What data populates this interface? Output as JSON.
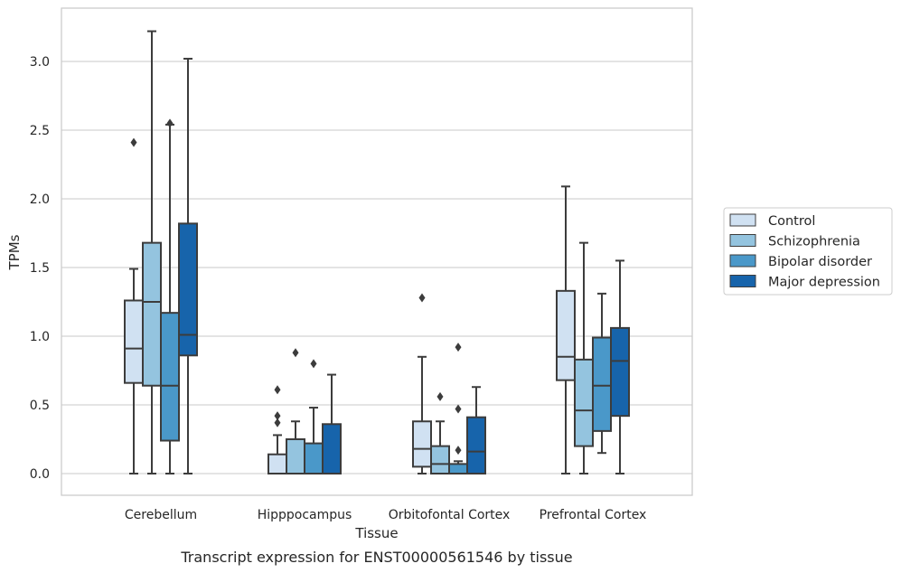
{
  "caption": "Transcript expression for ENST00000561546 by tissue",
  "chart_data": {
    "type": "box",
    "xlabel": "Tissue",
    "ylabel": "TPMs",
    "ylim": [
      -0.15,
      3.4
    ],
    "yticks": [
      0.0,
      0.5,
      1.0,
      1.5,
      2.0,
      2.5,
      3.0
    ],
    "ytick_labels": [
      "0.0",
      "0.5",
      "1.0",
      "1.5",
      "2.0",
      "2.5",
      "3.0"
    ],
    "grid": "horizontal",
    "legend_position": "right",
    "categories": [
      "Cerebellum",
      "Hipppocampus",
      "Orbitofontal Cortex",
      "Prefrontal Cortex"
    ],
    "series": [
      {
        "name": "Control",
        "color": "#d0e1f2",
        "boxes": [
          {
            "whislo": 0.0,
            "q1": 0.66,
            "med": 0.91,
            "q3": 1.26,
            "whishi": 1.49,
            "fliers": [
              2.41
            ]
          },
          {
            "whislo": 0.0,
            "q1": 0.0,
            "med": 0.0,
            "q3": 0.14,
            "whishi": 0.28,
            "fliers": [
              0.37,
              0.42,
              0.61
            ]
          },
          {
            "whislo": 0.0,
            "q1": 0.05,
            "med": 0.18,
            "q3": 0.38,
            "whishi": 0.85,
            "fliers": [
              1.28
            ]
          },
          {
            "whislo": 0.0,
            "q1": 0.68,
            "med": 0.85,
            "q3": 1.33,
            "whishi": 2.09,
            "fliers": []
          }
        ]
      },
      {
        "name": "Schizophrenia",
        "color": "#94c4df",
        "boxes": [
          {
            "whislo": 0.0,
            "q1": 0.64,
            "med": 1.25,
            "q3": 1.68,
            "whishi": 3.22,
            "fliers": []
          },
          {
            "whislo": 0.0,
            "q1": 0.0,
            "med": 0.0,
            "q3": 0.25,
            "whishi": 0.38,
            "fliers": [
              0.88
            ]
          },
          {
            "whislo": 0.0,
            "q1": 0.0,
            "med": 0.07,
            "q3": 0.2,
            "whishi": 0.38,
            "fliers": [
              0.56
            ]
          },
          {
            "whislo": 0.0,
            "q1": 0.2,
            "med": 0.46,
            "q3": 0.83,
            "whishi": 1.68,
            "fliers": []
          }
        ]
      },
      {
        "name": "Bipolar disorder",
        "color": "#4a98c9",
        "boxes": [
          {
            "whislo": 0.0,
            "q1": 0.24,
            "med": 0.64,
            "q3": 1.17,
            "whishi": 2.54,
            "fliers": [
              2.55
            ]
          },
          {
            "whislo": 0.0,
            "q1": 0.0,
            "med": 0.0,
            "q3": 0.22,
            "whishi": 0.48,
            "fliers": [
              0.8
            ]
          },
          {
            "whislo": 0.0,
            "q1": 0.0,
            "med": 0.0,
            "q3": 0.07,
            "whishi": 0.09,
            "fliers": [
              0.17,
              0.47,
              0.92
            ]
          },
          {
            "whislo": 0.15,
            "q1": 0.31,
            "med": 0.64,
            "q3": 0.99,
            "whishi": 1.31,
            "fliers": []
          }
        ]
      },
      {
        "name": "Major depression",
        "color": "#1764ab",
        "boxes": [
          {
            "whislo": 0.0,
            "q1": 0.86,
            "med": 1.01,
            "q3": 1.82,
            "whishi": 3.02,
            "fliers": []
          },
          {
            "whislo": 0.0,
            "q1": 0.0,
            "med": 0.0,
            "q3": 0.36,
            "whishi": 0.72,
            "fliers": []
          },
          {
            "whislo": 0.0,
            "q1": 0.0,
            "med": 0.16,
            "q3": 0.41,
            "whishi": 0.63,
            "fliers": []
          },
          {
            "whislo": 0.0,
            "q1": 0.42,
            "med": 0.82,
            "q3": 1.06,
            "whishi": 1.55,
            "fliers": []
          }
        ]
      }
    ]
  }
}
